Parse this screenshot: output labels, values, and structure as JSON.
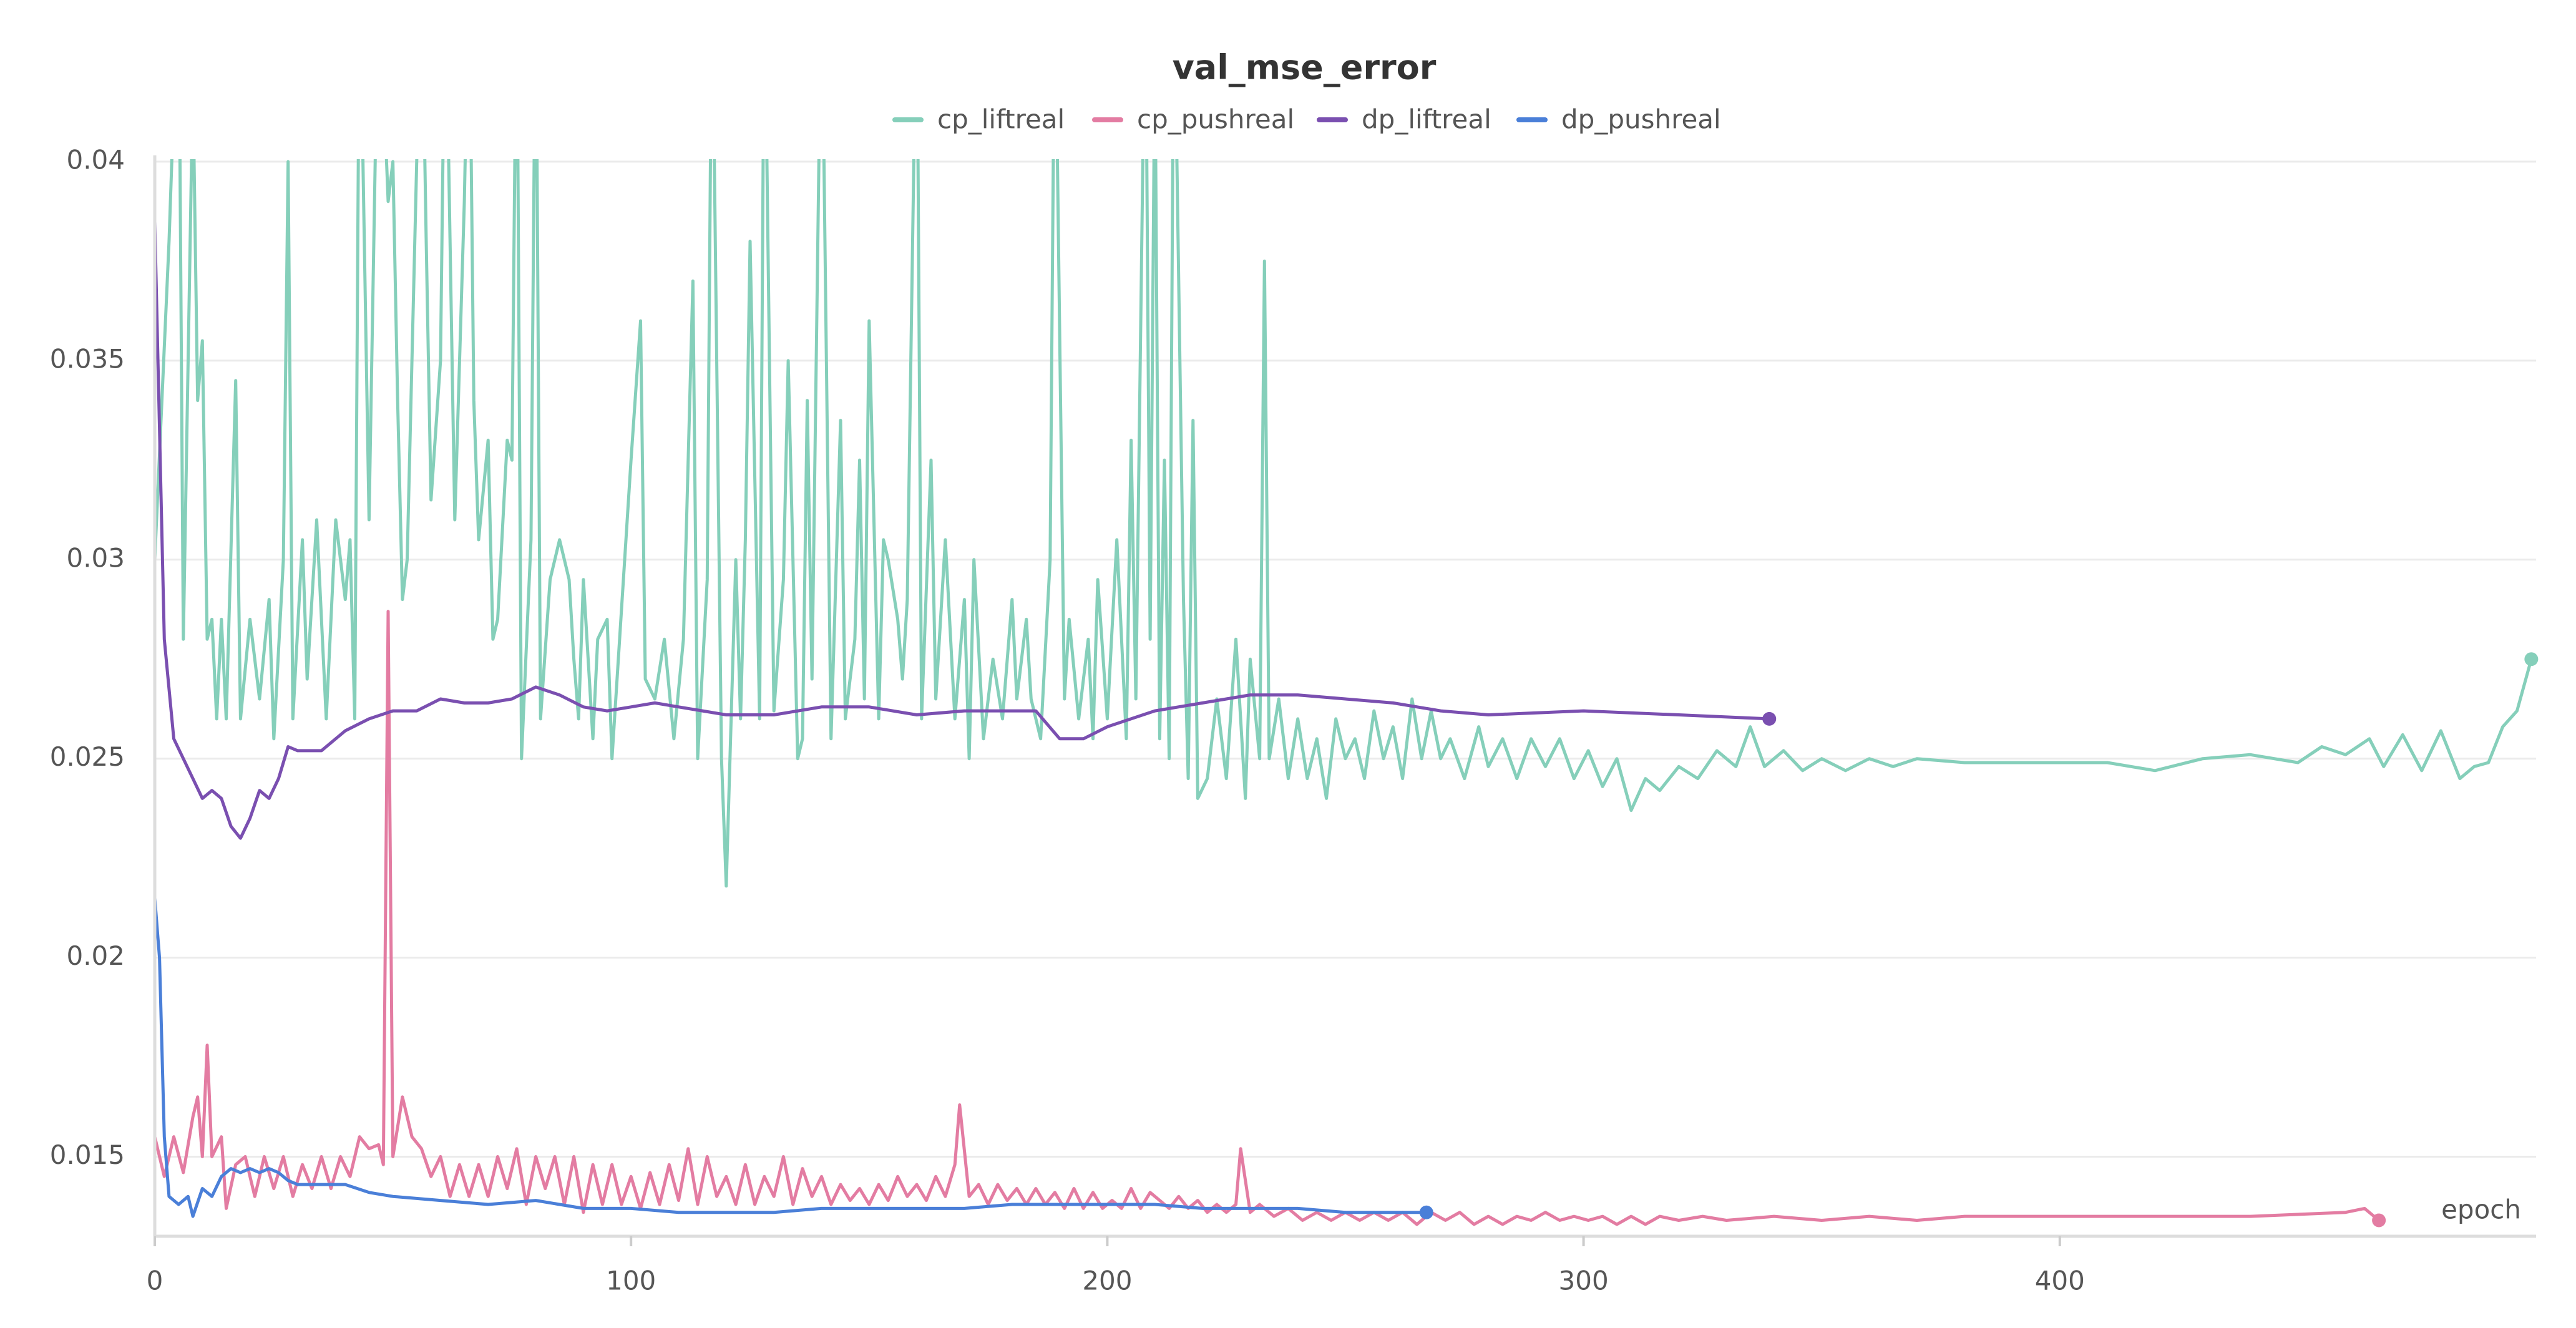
{
  "chart_data": {
    "type": "line",
    "title": "val_mse_error",
    "xlabel": "epoch",
    "xlim": [
      0,
      500
    ],
    "xticks": [
      0,
      100,
      200,
      300,
      400
    ],
    "ylim": [
      0.013,
      0.04
    ],
    "yticks": [
      0.015,
      0.02,
      0.025,
      0.03,
      0.035,
      0.04
    ],
    "grid": true,
    "legend": "top",
    "series": [
      {
        "name": "cp_liftreal",
        "color": "#85cfba",
        "x": [
          0,
          3,
          5,
          6,
          8,
          9,
          10,
          11,
          12,
          13,
          14,
          15,
          17,
          18,
          20,
          22,
          24,
          25,
          27,
          28,
          29,
          31,
          32,
          34,
          36,
          38,
          40,
          41,
          42,
          43,
          45,
          47,
          49,
          50,
          51,
          52,
          53,
          56,
          57,
          58,
          60,
          61,
          63,
          65,
          66,
          67,
          68,
          70,
          71,
          72,
          74,
          75,
          76,
          77,
          79,
          80,
          81,
          83,
          85,
          87,
          88,
          89,
          90,
          92,
          93,
          95,
          96,
          100,
          102,
          103,
          105,
          107,
          109,
          111,
          113,
          114,
          116,
          117,
          119,
          120,
          122,
          123,
          124,
          125,
          127,
          128,
          130,
          132,
          133,
          135,
          136,
          137,
          138,
          140,
          142,
          144,
          145,
          147,
          148,
          149,
          150,
          152,
          153,
          154,
          156,
          157,
          158,
          160,
          161,
          163,
          164,
          166,
          168,
          170,
          171,
          172,
          174,
          176,
          178,
          180,
          181,
          183,
          184,
          186,
          188,
          189,
          191,
          192,
          194,
          196,
          197,
          198,
          200,
          202,
          204,
          205,
          206,
          208,
          209,
          210,
          211,
          212,
          213,
          214,
          216,
          217,
          218,
          219,
          221,
          223,
          225,
          227,
          229,
          230,
          232,
          233,
          234,
          236,
          238,
          240,
          242,
          244,
          246,
          248,
          250,
          252,
          254,
          256,
          258,
          260,
          262,
          264,
          266,
          268,
          270,
          272,
          275,
          278,
          280,
          283,
          286,
          289,
          292,
          295,
          298,
          301,
          304,
          307,
          310,
          313,
          316,
          320,
          324,
          328,
          332,
          335,
          338,
          342,
          346,
          350,
          355,
          360,
          365,
          370,
          380,
          390,
          400,
          410,
          420,
          430,
          440,
          450,
          455,
          460,
          465,
          468,
          472,
          476,
          480,
          484,
          487,
          490,
          493,
          496,
          499
        ],
        "values": [
          0.03,
          0.038,
          0.045,
          0.028,
          0.042,
          0.034,
          0.0355,
          0.028,
          0.0285,
          0.026,
          0.0285,
          0.026,
          0.0345,
          0.026,
          0.0285,
          0.0265,
          0.029,
          0.0255,
          0.03,
          0.04,
          0.026,
          0.0305,
          0.027,
          0.031,
          0.026,
          0.031,
          0.029,
          0.0305,
          0.026,
          0.045,
          0.031,
          0.045,
          0.039,
          0.04,
          0.034,
          0.029,
          0.03,
          0.045,
          0.038,
          0.0315,
          0.035,
          0.045,
          0.031,
          0.039,
          0.045,
          0.034,
          0.0305,
          0.033,
          0.028,
          0.0285,
          0.033,
          0.0325,
          0.045,
          0.025,
          0.0305,
          0.045,
          0.026,
          0.0295,
          0.0305,
          0.0295,
          0.0275,
          0.026,
          0.0295,
          0.0255,
          0.028,
          0.0285,
          0.025,
          0.0325,
          0.036,
          0.027,
          0.0265,
          0.028,
          0.0255,
          0.028,
          0.037,
          0.025,
          0.0295,
          0.045,
          0.025,
          0.0218,
          0.03,
          0.026,
          0.0305,
          0.038,
          0.026,
          0.045,
          0.0262,
          0.0295,
          0.035,
          0.025,
          0.0255,
          0.034,
          0.027,
          0.045,
          0.0255,
          0.0335,
          0.026,
          0.028,
          0.0325,
          0.0265,
          0.036,
          0.026,
          0.0305,
          0.03,
          0.0285,
          0.027,
          0.029,
          0.045,
          0.026,
          0.0325,
          0.0265,
          0.0305,
          0.026,
          0.029,
          0.025,
          0.03,
          0.0255,
          0.0275,
          0.026,
          0.029,
          0.0265,
          0.0285,
          0.0265,
          0.0255,
          0.03,
          0.045,
          0.0265,
          0.0285,
          0.026,
          0.028,
          0.0255,
          0.0295,
          0.026,
          0.0305,
          0.0255,
          0.033,
          0.0265,
          0.045,
          0.028,
          0.043,
          0.0255,
          0.0325,
          0.025,
          0.045,
          0.029,
          0.0245,
          0.0335,
          0.024,
          0.0245,
          0.0265,
          0.0245,
          0.028,
          0.024,
          0.0275,
          0.025,
          0.0375,
          0.025,
          0.0265,
          0.0245,
          0.026,
          0.0245,
          0.0255,
          0.024,
          0.026,
          0.025,
          0.0255,
          0.0245,
          0.0262,
          0.025,
          0.0258,
          0.0245,
          0.0265,
          0.025,
          0.0262,
          0.025,
          0.0255,
          0.0245,
          0.0258,
          0.0248,
          0.0255,
          0.0245,
          0.0255,
          0.0248,
          0.0255,
          0.0245,
          0.0252,
          0.0243,
          0.025,
          0.0237,
          0.0245,
          0.0242,
          0.0248,
          0.0245,
          0.0252,
          0.0248,
          0.0258,
          0.0248,
          0.0252,
          0.0247,
          0.025,
          0.0247,
          0.025,
          0.0248,
          0.025,
          0.0249,
          0.0249,
          0.0249,
          0.0249,
          0.0247,
          0.025,
          0.0251,
          0.0249,
          0.0253,
          0.0251,
          0.0255,
          0.0248,
          0.0256,
          0.0247,
          0.0257,
          0.0245,
          0.0248,
          0.0249,
          0.0258,
          0.0262,
          0.0275
        ]
      },
      {
        "name": "cp_pushreal",
        "color": "#e37ca2",
        "x": [
          0,
          2,
          4,
          6,
          8,
          9,
          10,
          11,
          12,
          14,
          15,
          17,
          19,
          21,
          23,
          25,
          27,
          29,
          31,
          33,
          35,
          37,
          39,
          41,
          43,
          45,
          47,
          48,
          49,
          50,
          52,
          54,
          56,
          58,
          60,
          62,
          64,
          66,
          68,
          70,
          72,
          74,
          76,
          78,
          80,
          82,
          84,
          86,
          88,
          90,
          92,
          94,
          96,
          98,
          100,
          102,
          104,
          106,
          108,
          110,
          112,
          114,
          116,
          118,
          120,
          122,
          124,
          126,
          128,
          130,
          132,
          134,
          136,
          138,
          140,
          142,
          144,
          146,
          148,
          150,
          152,
          154,
          156,
          158,
          160,
          162,
          164,
          166,
          168,
          169,
          171,
          173,
          175,
          177,
          179,
          181,
          183,
          185,
          187,
          189,
          191,
          193,
          195,
          197,
          199,
          201,
          203,
          205,
          207,
          209,
          211,
          213,
          215,
          217,
          219,
          221,
          223,
          225,
          227,
          228,
          230,
          232,
          235,
          238,
          241,
          244,
          247,
          250,
          253,
          256,
          259,
          262,
          265,
          268,
          271,
          274,
          277,
          280,
          283,
          286,
          289,
          292,
          295,
          298,
          301,
          304,
          307,
          310,
          313,
          316,
          320,
          325,
          330,
          340,
          350,
          360,
          370,
          380,
          390,
          400,
          420,
          440,
          460,
          464,
          467
        ],
        "values": [
          0.0155,
          0.0145,
          0.0155,
          0.0146,
          0.016,
          0.0165,
          0.015,
          0.0178,
          0.015,
          0.0155,
          0.0137,
          0.0148,
          0.015,
          0.014,
          0.015,
          0.0142,
          0.015,
          0.014,
          0.0148,
          0.0142,
          0.015,
          0.0142,
          0.015,
          0.0145,
          0.0155,
          0.0152,
          0.0153,
          0.0148,
          0.0287,
          0.015,
          0.0165,
          0.0155,
          0.0152,
          0.0145,
          0.015,
          0.014,
          0.0148,
          0.014,
          0.0148,
          0.014,
          0.015,
          0.0142,
          0.0152,
          0.0138,
          0.015,
          0.0142,
          0.015,
          0.0138,
          0.015,
          0.0136,
          0.0148,
          0.0138,
          0.0148,
          0.0138,
          0.0145,
          0.0137,
          0.0146,
          0.0138,
          0.0148,
          0.0139,
          0.0152,
          0.0138,
          0.015,
          0.014,
          0.0145,
          0.0138,
          0.0148,
          0.0138,
          0.0145,
          0.014,
          0.015,
          0.0138,
          0.0147,
          0.014,
          0.0145,
          0.0138,
          0.0143,
          0.0139,
          0.0142,
          0.0138,
          0.0143,
          0.0139,
          0.0145,
          0.014,
          0.0143,
          0.0139,
          0.0145,
          0.014,
          0.0148,
          0.0163,
          0.014,
          0.0143,
          0.0138,
          0.0143,
          0.0139,
          0.0142,
          0.0138,
          0.0142,
          0.0138,
          0.0141,
          0.0137,
          0.0142,
          0.0137,
          0.0141,
          0.0137,
          0.0139,
          0.0137,
          0.0142,
          0.0137,
          0.0141,
          0.0139,
          0.0137,
          0.014,
          0.0137,
          0.0139,
          0.0136,
          0.0138,
          0.0136,
          0.0138,
          0.0152,
          0.0136,
          0.0138,
          0.0135,
          0.0137,
          0.0134,
          0.0136,
          0.0134,
          0.0136,
          0.0134,
          0.0136,
          0.0134,
          0.0136,
          0.0133,
          0.0136,
          0.0134,
          0.0136,
          0.0133,
          0.0135,
          0.0133,
          0.0135,
          0.0134,
          0.0136,
          0.0134,
          0.0135,
          0.0134,
          0.0135,
          0.0133,
          0.0135,
          0.0133,
          0.0135,
          0.0134,
          0.0135,
          0.0134,
          0.0135,
          0.0134,
          0.0135,
          0.0134,
          0.0135,
          0.0135,
          0.0135,
          0.0135,
          0.0135,
          0.0136,
          0.0137,
          0.0134
        ]
      },
      {
        "name": "dp_liftreal",
        "color": "#7a4fb0",
        "x": [
          0,
          2,
          4,
          6,
          8,
          10,
          12,
          14,
          16,
          18,
          20,
          22,
          24,
          26,
          28,
          30,
          35,
          40,
          45,
          50,
          55,
          60,
          65,
          70,
          75,
          80,
          85,
          90,
          95,
          100,
          105,
          110,
          115,
          120,
          130,
          140,
          150,
          160,
          170,
          180,
          185,
          190,
          195,
          200,
          210,
          220,
          230,
          240,
          250,
          260,
          270,
          280,
          300,
          320,
          339
        ],
        "values": [
          0.0385,
          0.028,
          0.0255,
          0.025,
          0.0245,
          0.024,
          0.0242,
          0.024,
          0.0233,
          0.023,
          0.0235,
          0.0242,
          0.024,
          0.0245,
          0.0253,
          0.0252,
          0.0252,
          0.0257,
          0.026,
          0.0262,
          0.0262,
          0.0265,
          0.0264,
          0.0264,
          0.0265,
          0.0268,
          0.0266,
          0.0263,
          0.0262,
          0.0263,
          0.0264,
          0.0263,
          0.0262,
          0.0261,
          0.0261,
          0.0263,
          0.0263,
          0.0261,
          0.0262,
          0.0262,
          0.0262,
          0.0255,
          0.0255,
          0.0258,
          0.0262,
          0.0264,
          0.0266,
          0.0266,
          0.0265,
          0.0264,
          0.0262,
          0.0261,
          0.0262,
          0.0261,
          0.026
        ]
      },
      {
        "name": "dp_pushreal",
        "color": "#4a7fd8",
        "x": [
          0,
          1,
          2,
          3,
          5,
          7,
          8,
          10,
          12,
          14,
          16,
          18,
          20,
          22,
          24,
          26,
          28,
          30,
          35,
          40,
          45,
          50,
          60,
          70,
          80,
          85,
          90,
          100,
          110,
          120,
          130,
          140,
          150,
          160,
          170,
          180,
          190,
          200,
          210,
          220,
          230,
          240,
          250,
          260,
          267
        ],
        "values": [
          0.0215,
          0.02,
          0.0155,
          0.014,
          0.0138,
          0.014,
          0.0135,
          0.0142,
          0.014,
          0.0145,
          0.0147,
          0.0146,
          0.0147,
          0.0146,
          0.0147,
          0.0146,
          0.0144,
          0.0143,
          0.0143,
          0.0143,
          0.0141,
          0.014,
          0.0139,
          0.0138,
          0.0139,
          0.0138,
          0.0137,
          0.0137,
          0.0136,
          0.0136,
          0.0136,
          0.0137,
          0.0137,
          0.0137,
          0.0137,
          0.0138,
          0.0138,
          0.0138,
          0.0138,
          0.0137,
          0.0137,
          0.0137,
          0.0136,
          0.0136,
          0.0136
        ]
      }
    ]
  }
}
